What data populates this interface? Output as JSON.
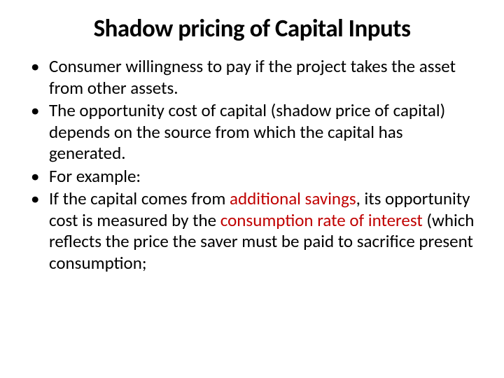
{
  "slide": {
    "title": "Shadow pricing of Capital Inputs",
    "title_fontsize": 35,
    "title_fontweight": 700,
    "title_color": "#000000",
    "body_fontsize": 25,
    "body_color": "#000000",
    "highlight_color": "#c00000",
    "background_color": "#ffffff",
    "bullets": [
      {
        "segments": [
          {
            "text": "Consumer willingness to pay if the project takes the asset from other assets.",
            "highlight": false
          }
        ]
      },
      {
        "segments": [
          {
            "text": "The opportunity cost of capital (shadow price of capital) depends on the source from which the capital has generated.",
            "highlight": false
          }
        ]
      },
      {
        "segments": [
          {
            "text": "For example:",
            "highlight": false
          }
        ]
      },
      {
        "segments": [
          {
            "text": "If the capital comes from ",
            "highlight": false
          },
          {
            "text": "additional savings",
            "highlight": true
          },
          {
            "text": ", its opportunity cost is measured by the ",
            "highlight": false
          },
          {
            "text": "consumption rate of interest ",
            "highlight": true
          },
          {
            "text": "(which reflects the price the saver must be paid to sacrifice present consumption;",
            "highlight": false
          }
        ]
      }
    ]
  }
}
